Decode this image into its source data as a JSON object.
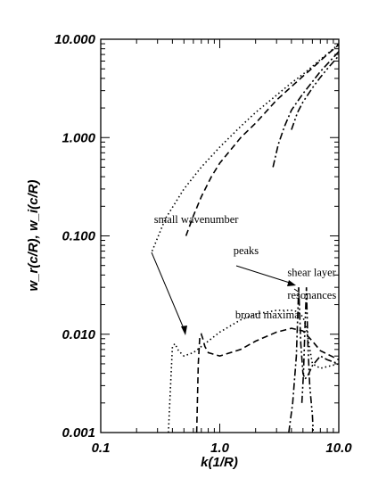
{
  "chart_data": {
    "type": "line",
    "xlabel": "k(1/R)",
    "ylabel": "w_r(c/R), w_i(c/R)",
    "xscale": "log",
    "yscale": "log",
    "xlim": [
      0.1,
      10.0
    ],
    "ylim": [
      0.001,
      10.0
    ],
    "xticks": [
      "0.1",
      "1.0",
      "10.0"
    ],
    "yticks": [
      "0.001",
      "0.010",
      "0.100",
      "1.000",
      "10.000"
    ],
    "grid": false,
    "annotations": [
      {
        "text": "small wavenumber",
        "x": 0.28,
        "y": 0.135
      },
      {
        "text": "peaks",
        "x": 1.3,
        "y": 0.065
      },
      {
        "text": "shear layer",
        "x": 3.7,
        "y": 0.039
      },
      {
        "text": "resonances",
        "x": 3.7,
        "y": 0.023
      },
      {
        "text": "broad maxima",
        "x": 1.35,
        "y": 0.0145
      }
    ],
    "series": [
      {
        "style": "dotted",
        "x": [
          0.27,
          0.35,
          0.5,
          0.7,
          1.0,
          1.5,
          2.0,
          3.0,
          4.0,
          5.0,
          6.0,
          7.0,
          8.0,
          9.0,
          10.0
        ],
        "y": [
          0.07,
          0.15,
          0.3,
          0.5,
          0.8,
          1.3,
          1.8,
          2.7,
          3.6,
          4.4,
          5.3,
          6.2,
          7.1,
          8.0,
          9.0
        ]
      },
      {
        "style": "dashed",
        "x": [
          0.52,
          0.6,
          0.7,
          0.85,
          1.0,
          1.5,
          2.0,
          3.0,
          4.0,
          5.0,
          6.0,
          8.0,
          10.0
        ],
        "y": [
          0.1,
          0.16,
          0.25,
          0.4,
          0.55,
          1.0,
          1.4,
          2.4,
          3.3,
          4.2,
          5.1,
          7.0,
          8.8
        ]
      },
      {
        "style": "dash-dot",
        "x": [
          2.8,
          3.1,
          3.5,
          4.0,
          5.0,
          6.0,
          7.0,
          8.0,
          10.0
        ],
        "y": [
          0.5,
          0.85,
          1.3,
          1.9,
          2.8,
          3.7,
          4.7,
          5.6,
          7.5
        ]
      },
      {
        "style": "dash-dot-dot",
        "x": [
          4.0,
          4.5,
          5.0,
          6.0,
          7.0,
          8.0,
          10.0
        ],
        "y": [
          1.2,
          1.8,
          2.3,
          3.2,
          4.1,
          5.0,
          6.8
        ]
      },
      {
        "style": "dotted",
        "x": [
          0.37,
          0.38,
          0.4,
          0.42,
          0.45,
          0.5,
          0.6,
          0.8,
          1.0,
          1.5,
          2.0,
          3.0,
          4.0,
          4.5,
          5.0,
          5.3,
          5.6,
          6.0,
          7.0,
          10.0
        ],
        "y": [
          0.001,
          0.002,
          0.0075,
          0.008,
          0.0068,
          0.006,
          0.0065,
          0.0085,
          0.0105,
          0.014,
          0.016,
          0.0175,
          0.0175,
          0.017,
          0.015,
          0.012,
          0.008,
          0.005,
          0.0045,
          0.005
        ]
      },
      {
        "style": "dashed",
        "x": [
          0.64,
          0.66,
          0.68,
          0.7,
          0.72,
          0.75,
          0.8,
          1.0,
          1.5,
          2.0,
          3.0,
          4.0,
          5.0,
          6.0,
          7.0,
          10.0
        ],
        "y": [
          0.001,
          0.005,
          0.0095,
          0.01,
          0.009,
          0.0075,
          0.0065,
          0.006,
          0.007,
          0.0085,
          0.0105,
          0.0115,
          0.0108,
          0.0085,
          0.0068,
          0.0055
        ]
      },
      {
        "style": "dash-dot",
        "x": [
          3.8,
          4.1,
          4.4,
          4.6,
          4.8,
          5.0,
          5.2,
          5.5,
          6.0,
          7.0,
          8.0,
          10.0
        ],
        "y": [
          0.001,
          0.002,
          0.006,
          0.03,
          0.008,
          0.004,
          0.0035,
          0.0038,
          0.0048,
          0.006,
          0.0055,
          0.005
        ]
      },
      {
        "style": "dash-dot-dot",
        "x": [
          4.9,
          5.05,
          5.2,
          5.35,
          5.5,
          5.7,
          6.0,
          6.1
        ],
        "y": [
          0.002,
          0.004,
          0.012,
          0.03,
          0.008,
          0.003,
          0.0015,
          0.001
        ]
      }
    ]
  }
}
